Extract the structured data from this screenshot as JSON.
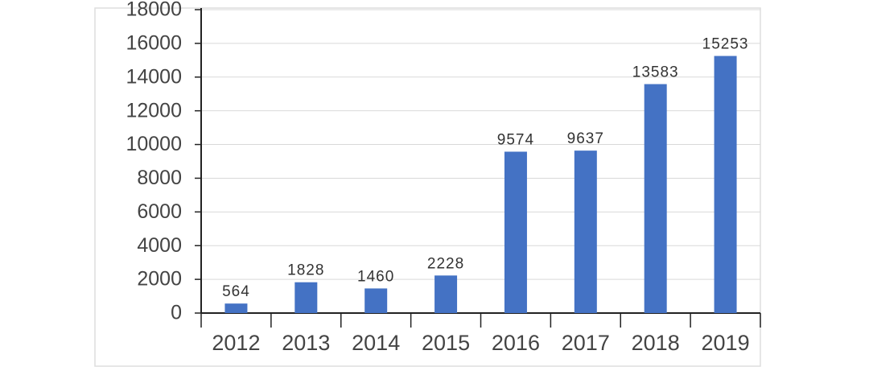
{
  "chart_data": {
    "type": "bar",
    "categories": [
      "2012",
      "2013",
      "2014",
      "2015",
      "2016",
      "2017",
      "2018",
      "2019"
    ],
    "values": [
      564,
      1828,
      1460,
      2228,
      9574,
      9637,
      13583,
      15253
    ],
    "color": "#4472c4",
    "ylim": [
      0,
      18000
    ],
    "yticks": [
      0,
      2000,
      4000,
      6000,
      8000,
      10000,
      12000,
      14000,
      16000,
      18000
    ],
    "grid": true
  }
}
